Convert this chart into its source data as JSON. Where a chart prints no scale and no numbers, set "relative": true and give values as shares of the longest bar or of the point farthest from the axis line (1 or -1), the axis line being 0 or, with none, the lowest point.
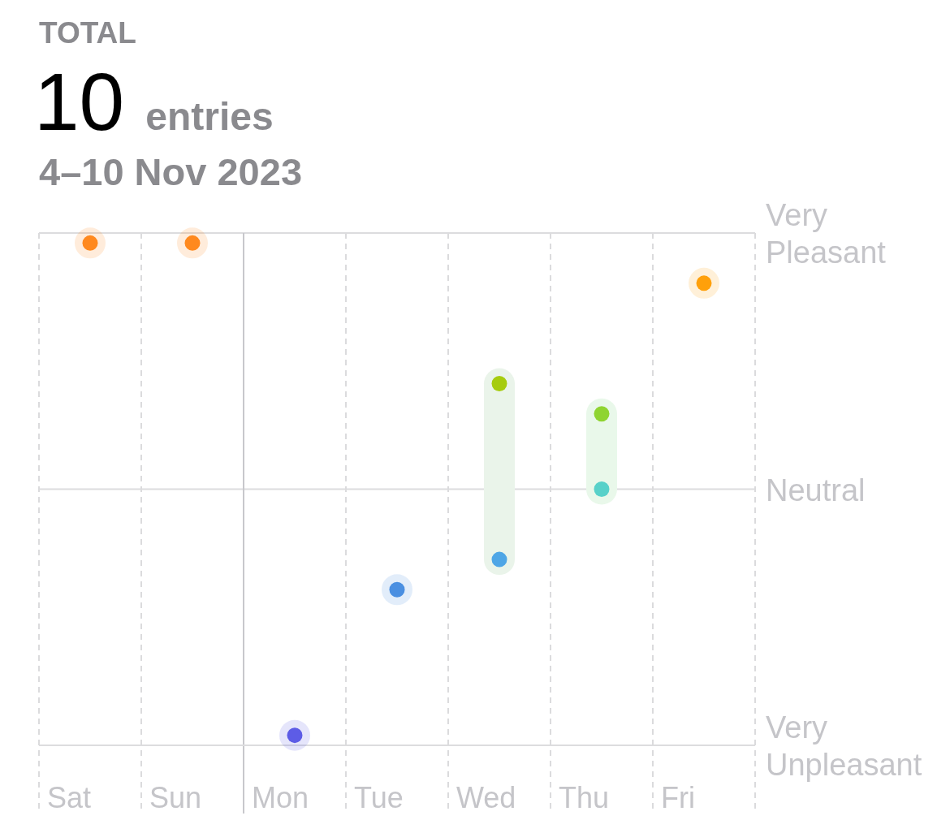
{
  "chart_data": {
    "type": "scatter",
    "title": "TOTAL",
    "subtitle": "10 entries",
    "annotations": [
      "4–10 Nov 2023",
      "Very Unpleasant"
    ],
    "categories": [
      "Sat",
      "Sun",
      "Mon",
      "Tue",
      "Wed",
      "Thu",
      "Fri"
    ],
    "relative": true,
    "grid": "x",
    "ref_lines": [
      {
        "axis": "y",
        "value": 1.02,
        "label": "Very Pleasant",
        "line_style": "solid",
        "color": "#dcdcde"
      },
      {
        "axis": "y",
        "value": 0.51,
        "label": "Neutral",
        "line_style": "solid",
        "color": "#dcdcde"
      },
      {
        "axis": "x",
        "value": "Mon",
        "line_style": "solid",
        "color": "#c8c8cc"
      }
    ],
    "series": [
      {
        "type": "line",
        "x": [
          "Wed",
          "Wed"
        ],
        "values": [
          0.72,
          0.37
        ],
        "color": "#eaf4ea"
      },
      {
        "type": "line",
        "x": [
          "Thu",
          "Thu"
        ],
        "values": [
          0.66,
          0.51
        ],
        "color": "#e9f8ea"
      },
      {
        "marker": "circle",
        "x": [
          "Sat",
          "Sun",
          "Mon",
          "Tue",
          "Wed",
          "Wed",
          "Thu",
          "Thu",
          "Fri"
        ],
        "values": [
          1,
          1,
          0.02,
          0.31,
          0.72,
          0.37,
          0.66,
          0.51,
          0.92
        ],
        "colors": [
          "#ff8a1e",
          "#ff8a1e",
          "#5e5ce6",
          "#4a90e2",
          "#a6cc0e",
          "#4fa6e6",
          "#8fd431",
          "#58d1c9",
          "#ffa00a"
        ]
      }
    ]
  }
}
